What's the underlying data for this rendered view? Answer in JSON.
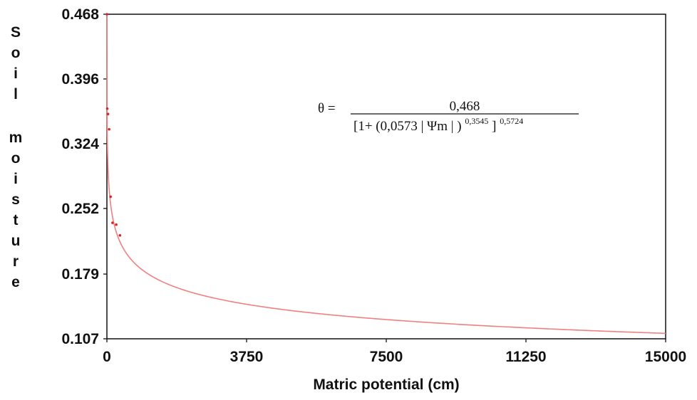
{
  "chart_data": {
    "type": "line",
    "xlabel": "Matric potential (cm)",
    "ylabel": "Soil moisture",
    "xlim": [
      0,
      15000
    ],
    "ylim": [
      0.107,
      0.468
    ],
    "x_ticks": [
      "0",
      "3750",
      "7500",
      "11250",
      "15000"
    ],
    "y_ticks": [
      "0.468",
      "0.396",
      "0.324",
      "0.252",
      "0.179",
      "0.107"
    ],
    "series": [
      {
        "type": "line",
        "model": {
          "theta_s": 0.468,
          "alpha": 0.0573,
          "n": 0.3545,
          "m": 0.5724
        },
        "color": "#f08080"
      },
      {
        "type": "scatter",
        "color": "#d62828",
        "points": [
          {
            "x": 0,
            "y": 0.468
          },
          {
            "x": 10,
            "y": 0.363
          },
          {
            "x": 30,
            "y": 0.357
          },
          {
            "x": 60,
            "y": 0.34
          },
          {
            "x": 100,
            "y": 0.265
          },
          {
            "x": 150,
            "y": 0.236
          },
          {
            "x": 250,
            "y": 0.234
          },
          {
            "x": 350,
            "y": 0.222
          }
        ]
      }
    ],
    "equation": {
      "lhs": "θ =",
      "numerator": "0,468",
      "denominator_main": "[1+ (0,0573 | Ψm | )",
      "exp1": "0,3545",
      "close": "]",
      "exp2": "0,5724"
    },
    "grid": false,
    "legend": "none"
  }
}
